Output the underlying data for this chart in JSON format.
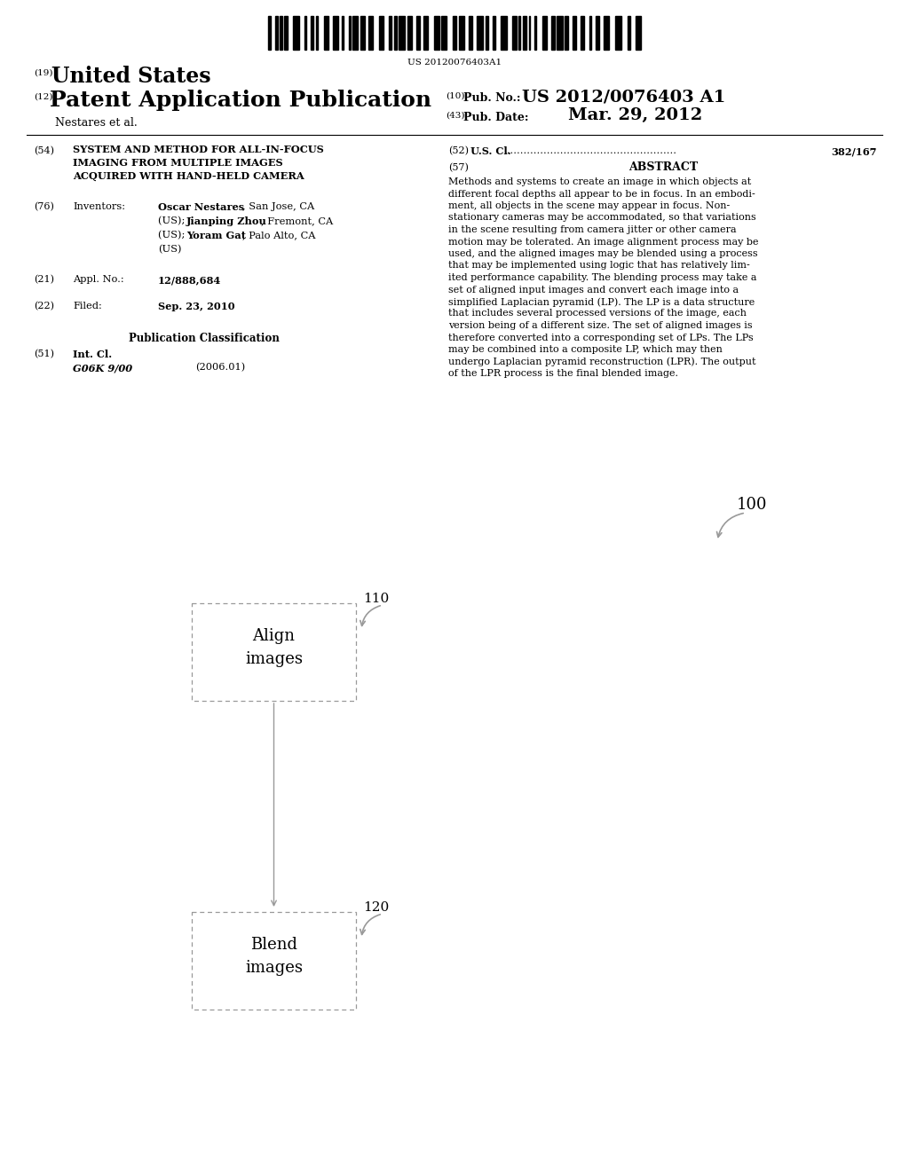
{
  "bg_color": "#ffffff",
  "barcode_text": "US 20120076403A1",
  "patent_number_label": "(19)",
  "patent_number_text": "United States",
  "pub_type_label": "(12)",
  "pub_type_text": "Patent Application Publication",
  "authors": "Nestares et al.",
  "pub_no_label": "(10)",
  "pub_no_prefix": "Pub. No.:",
  "pub_no": "US 2012/0076403 A1",
  "pub_date_label": "(43)",
  "pub_date_prefix": "Pub. Date:",
  "pub_date": "Mar. 29, 2012",
  "section54_label": "(54)",
  "section54_line1": "SYSTEM AND METHOD FOR ALL-IN-FOCUS",
  "section54_line2": "IMAGING FROM MULTIPLE IMAGES",
  "section54_line3": "ACQUIRED WITH HAND-HELD CAMERA",
  "section76_label": "(76)",
  "section76_title": "Inventors:",
  "inv1_bold": "Oscar Nestares",
  "inv1_rest": ", San Jose, CA",
  "inv1_cont": "(US); ",
  "inv2_bold": "Jianping Zhou",
  "inv2_rest": ", Fremont, CA",
  "inv2_cont": "(US); ",
  "inv3_bold": "Yoram Gat",
  "inv3_rest": ", Palo Alto, CA",
  "inv3_cont": "(US)",
  "section21_label": "(21)",
  "section21_title": "Appl. No.:",
  "section21_value": "12/888,684",
  "section22_label": "(22)",
  "section22_title": "Filed:",
  "section22_value": "Sep. 23, 2010",
  "pub_class_title": "Publication Classification",
  "section51_label": "(51)",
  "section51_title": "Int. Cl.",
  "section51_class": "G06K 9/00",
  "section51_year": "(2006.01)",
  "section52_label": "(52)",
  "section52_title": "U.S. Cl.",
  "section52_value": "382/167",
  "section57_label": "(57)",
  "section57_title": "ABSTRACT",
  "abstract_lines": [
    "Methods and systems to create an image in which objects at",
    "different focal depths all appear to be in focus. In an embodi-",
    "ment, all objects in the scene may appear in focus. Non-",
    "stationary cameras may be accommodated, so that variations",
    "in the scene resulting from camera jitter or other camera",
    "motion may be tolerated. An image alignment process may be",
    "used, and the aligned images may be blended using a process",
    "that may be implemented using logic that has relatively lim-",
    "ited performance capability. The blending process may take a",
    "set of aligned input images and convert each image into a",
    "simplified Laplacian pyramid (LP). The LP is a data structure",
    "that includes several processed versions of the image, each",
    "version being of a different size. The set of aligned images is",
    "therefore converted into a corresponding set of LPs. The LPs",
    "may be combined into a composite LP, which may then",
    "undergo Laplacian pyramid reconstruction (LPR). The output",
    "of the LPR process is the final blended image."
  ],
  "diagram_label_100": "100",
  "box1_label": "110",
  "box1_text": "Align\nimages",
  "box2_label": "120",
  "box2_text": "Blend\nimages",
  "text_color": "#000000",
  "box_edge_color": "#999999",
  "box_fill_color": "#ffffff",
  "arrow_color": "#999999"
}
